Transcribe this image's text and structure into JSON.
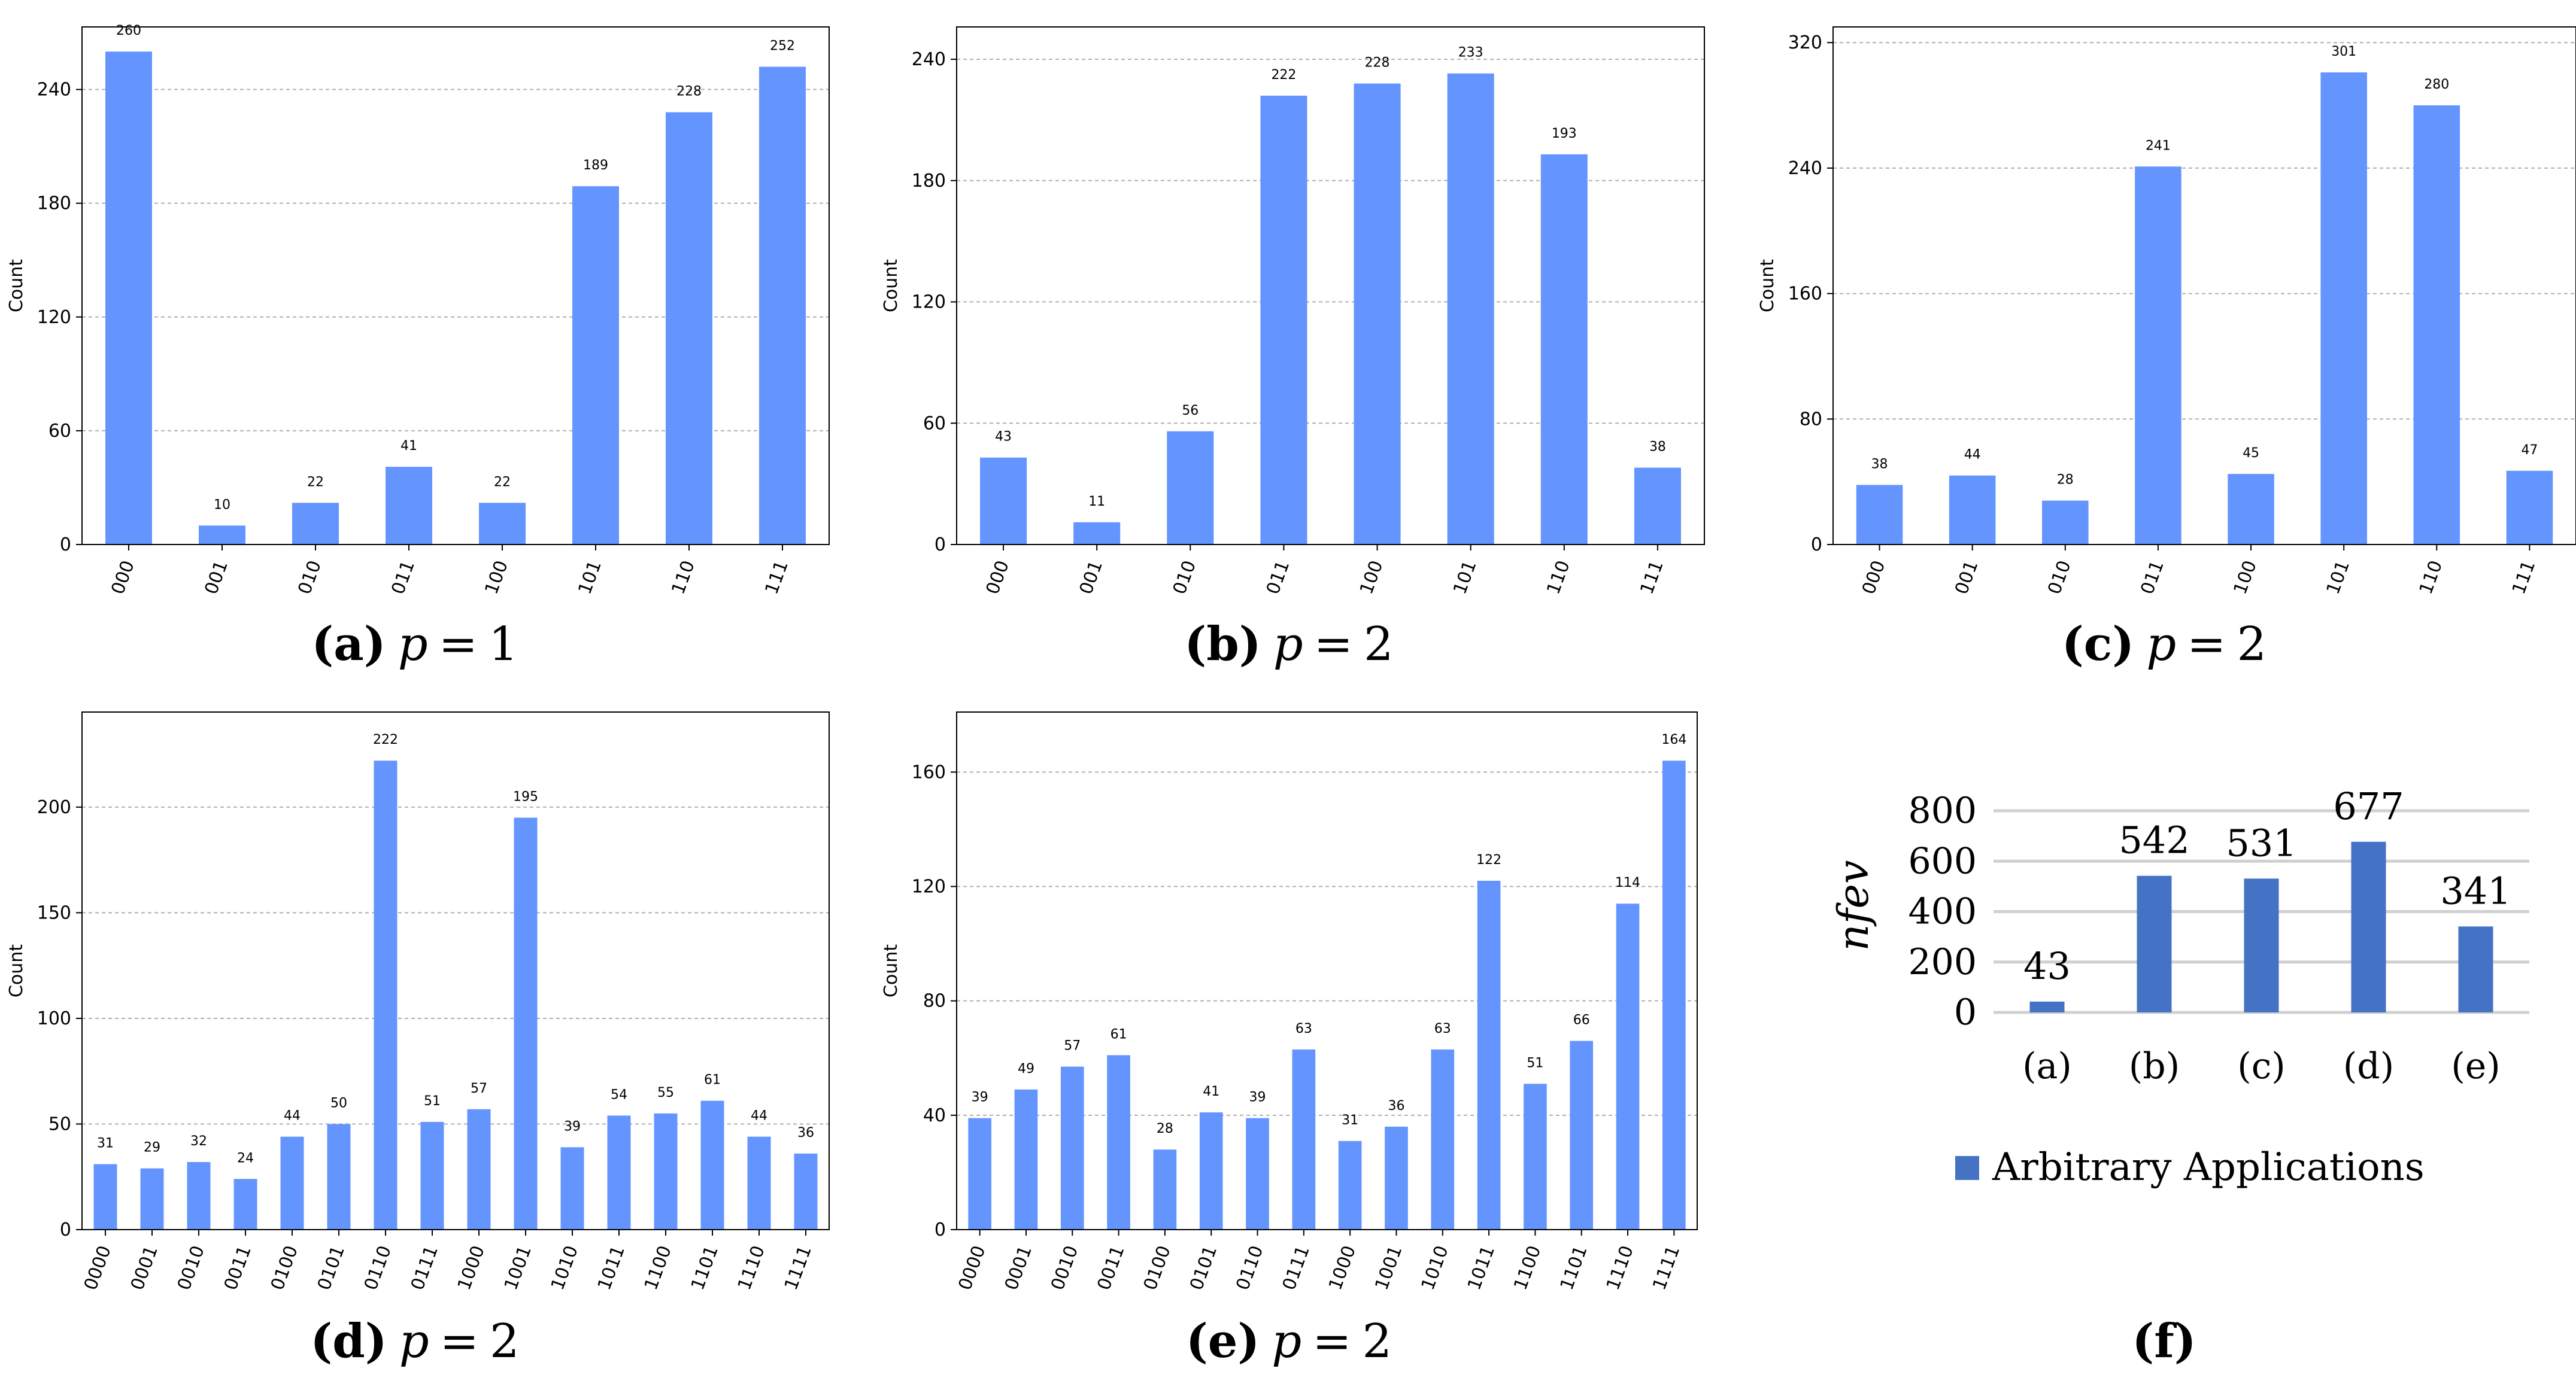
{
  "chart_data": [
    {
      "id": "a",
      "type": "bar",
      "caption": {
        "letter": "(a)",
        "variable": "p",
        "equals": "=",
        "value": "1"
      },
      "ylabel": "Count",
      "categories": [
        "000",
        "001",
        "010",
        "011",
        "100",
        "101",
        "110",
        "111"
      ],
      "values": [
        260,
        10,
        22,
        41,
        22,
        189,
        228,
        252
      ],
      "ylim": [
        0,
        273
      ],
      "yticks": [
        0,
        60,
        120,
        180,
        240
      ],
      "color": "#6495ff",
      "grid": true
    },
    {
      "id": "b",
      "type": "bar",
      "caption": {
        "letter": "(b)",
        "variable": "p",
        "equals": "=",
        "value": "2"
      },
      "ylabel": "Count",
      "categories": [
        "000",
        "001",
        "010",
        "011",
        "100",
        "101",
        "110",
        "111"
      ],
      "values": [
        43,
        11,
        56,
        222,
        228,
        233,
        193,
        38
      ],
      "ylim": [
        0,
        256
      ],
      "yticks": [
        0,
        60,
        120,
        180,
        240
      ],
      "color": "#6495ff",
      "grid": true
    },
    {
      "id": "c",
      "type": "bar",
      "caption": {
        "letter": "(c)",
        "variable": "p",
        "equals": "=",
        "value": "2"
      },
      "ylabel": "Count",
      "categories": [
        "000",
        "001",
        "010",
        "011",
        "100",
        "101",
        "110",
        "111"
      ],
      "values": [
        38,
        44,
        28,
        241,
        45,
        301,
        280,
        47
      ],
      "ylim": [
        0,
        330
      ],
      "yticks": [
        0,
        80,
        160,
        240,
        320
      ],
      "color": "#6495ff",
      "grid": true
    },
    {
      "id": "d",
      "type": "bar",
      "caption": {
        "letter": "(d)",
        "variable": "p",
        "equals": "=",
        "value": "2"
      },
      "ylabel": "Count",
      "categories": [
        "0000",
        "0001",
        "0010",
        "0011",
        "0100",
        "0101",
        "0110",
        "0111",
        "1000",
        "1001",
        "1010",
        "1011",
        "1100",
        "1101",
        "1110",
        "1111"
      ],
      "values": [
        31,
        29,
        32,
        24,
        44,
        50,
        222,
        51,
        57,
        195,
        39,
        54,
        55,
        61,
        44,
        36
      ],
      "ylim": [
        0,
        245
      ],
      "yticks": [
        0,
        50,
        100,
        150,
        200
      ],
      "color": "#6495ff",
      "grid": true
    },
    {
      "id": "e",
      "type": "bar",
      "caption": {
        "letter": "(e)",
        "variable": "p",
        "equals": "=",
        "value": "2"
      },
      "ylabel": "Count",
      "categories": [
        "0000",
        "0001",
        "0010",
        "0011",
        "0100",
        "0101",
        "0110",
        "0111",
        "1000",
        "1001",
        "1010",
        "1011",
        "1100",
        "1101",
        "1110",
        "1111"
      ],
      "values": [
        39,
        49,
        57,
        61,
        28,
        41,
        39,
        63,
        31,
        36,
        63,
        122,
        51,
        66,
        114,
        164
      ],
      "ylim": [
        0,
        181
      ],
      "yticks": [
        0,
        40,
        80,
        120,
        160
      ],
      "color": "#6495ff",
      "grid": true
    },
    {
      "id": "f",
      "type": "bar",
      "caption": {
        "letter": "(f)"
      },
      "ylabel": "nfev",
      "categories": [
        "(a)",
        "(b)",
        "(c)",
        "(d)",
        "(e)"
      ],
      "values": [
        43,
        542,
        531,
        677,
        341
      ],
      "ylim": [
        0,
        800
      ],
      "yticks": [
        0,
        200,
        400,
        600,
        800
      ],
      "series_name": "Arbitrary Applications",
      "legend": "bottom",
      "color": "#4472c4",
      "grid": true
    }
  ]
}
